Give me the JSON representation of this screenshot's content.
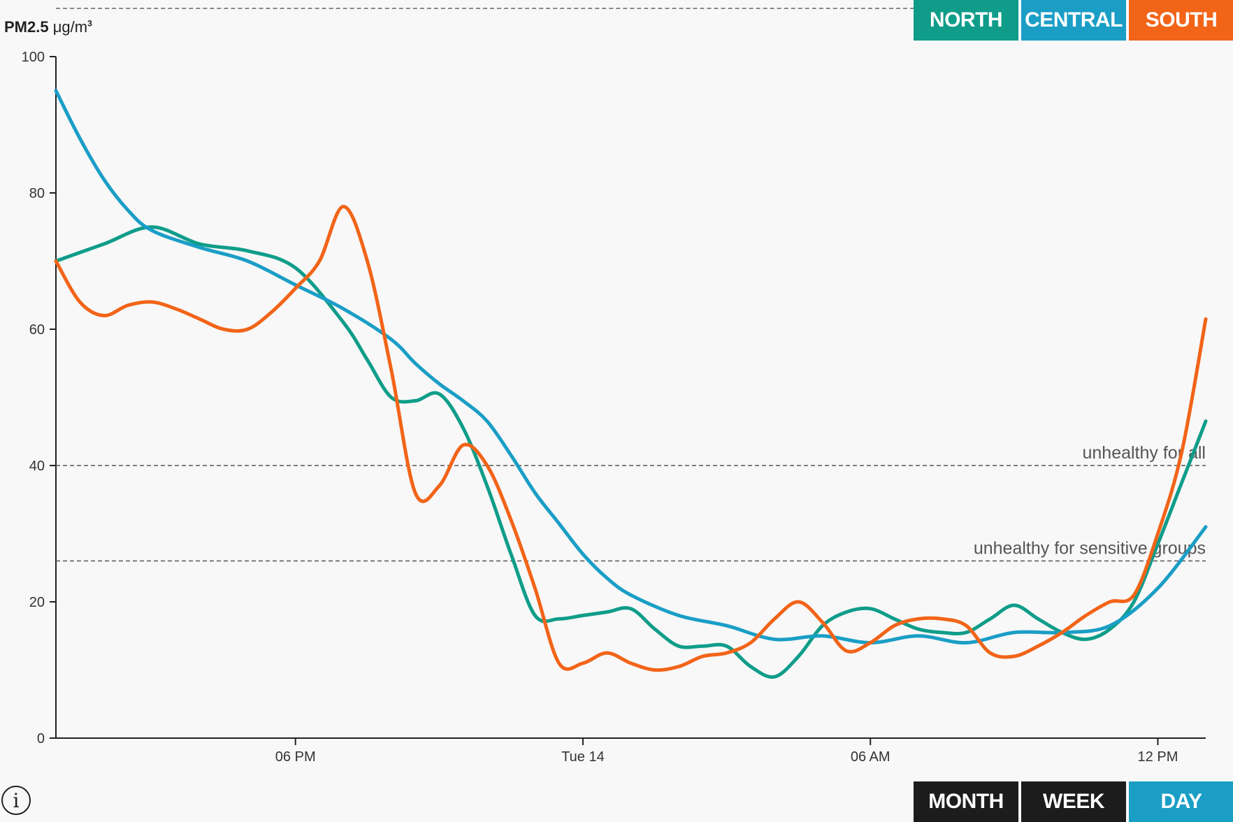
{
  "header": {
    "pollutant": "PM2.5",
    "unit": "μg/m",
    "unit_exp": "3"
  },
  "region_buttons": [
    {
      "label": "NORTH",
      "color": "#0f9d8a"
    },
    {
      "label": "CENTRAL",
      "color": "#1a9ec6"
    },
    {
      "label": "SOUTH",
      "color": "#f26418"
    }
  ],
  "range_buttons": [
    {
      "label": "MONTH",
      "color": "#1c1c1c",
      "selected": false
    },
    {
      "label": "WEEK",
      "color": "#1c1c1c",
      "selected": false
    },
    {
      "label": "DAY",
      "color": "#1a9ec6",
      "selected": true
    }
  ],
  "info_glyph": "i",
  "chart_data": {
    "type": "line",
    "x_unit": "hours",
    "xlim": [
      0,
      24
    ],
    "ylim": [
      0,
      100
    ],
    "yticks": [
      0,
      20,
      40,
      60,
      80,
      100
    ],
    "xticks": [
      {
        "x": 5,
        "label": "06 PM"
      },
      {
        "x": 11,
        "label": "Tue 14"
      },
      {
        "x": 17,
        "label": "06 AM"
      },
      {
        "x": 23,
        "label": "12 PM"
      }
    ],
    "thresholds": [
      {
        "value": 40,
        "label": "unhealthy for all"
      },
      {
        "value": 26,
        "label": "unhealthy for sensitive groups"
      }
    ],
    "grid": false,
    "series": [
      {
        "name": "NORTH",
        "color": "#0f9d8a",
        "x": [
          0,
          1,
          2,
          3,
          4,
          5,
          6,
          6.5,
          7,
          7.5,
          8,
          8.5,
          9,
          9.5,
          10,
          10.5,
          11,
          11.5,
          12,
          12.5,
          13,
          13.5,
          14,
          14.5,
          15,
          15.5,
          16,
          16.5,
          17,
          17.5,
          18,
          18.5,
          19,
          19.5,
          20,
          20.5,
          21,
          21.5,
          22,
          22.5,
          23,
          23.5,
          24
        ],
        "y": [
          70,
          72.5,
          75,
          72.5,
          71.5,
          69,
          61,
          55.5,
          50,
          49.5,
          50.5,
          45.5,
          37,
          27,
          18,
          17.5,
          18,
          18.5,
          19,
          16,
          13.5,
          13.5,
          13.5,
          10.5,
          9,
          12,
          16.5,
          18.5,
          19,
          17.5,
          16,
          15.5,
          15.5,
          17.5,
          19.5,
          17.5,
          15.5,
          14.5,
          16,
          20,
          28.5,
          37.5,
          46.5
        ]
      },
      {
        "name": "CENTRAL",
        "color": "#1a9ec6",
        "x": [
          0,
          0.5,
          1,
          1.5,
          2,
          3,
          4,
          5,
          6,
          7,
          7.5,
          8,
          8.5,
          9,
          9.5,
          10,
          10.5,
          11,
          11.5,
          12,
          13,
          14,
          15,
          16,
          17,
          18,
          19,
          20,
          21,
          22,
          23,
          24
        ],
        "y": [
          95,
          88,
          82,
          77.5,
          74.5,
          72,
          70,
          66.5,
          63,
          58.5,
          55,
          52,
          49.5,
          46.5,
          41.5,
          36,
          31.5,
          27,
          23.5,
          21,
          18,
          16.5,
          14.5,
          15,
          14,
          15,
          14,
          15.5,
          15.5,
          16.5,
          22,
          31
        ]
      },
      {
        "name": "SOUTH",
        "color": "#f26418",
        "x": [
          0,
          0.5,
          1,
          1.5,
          2,
          2.5,
          3,
          3.5,
          4,
          4.5,
          5,
          5.5,
          6,
          6.5,
          7,
          7.5,
          8,
          8.5,
          9,
          9.5,
          10,
          10.5,
          11,
          11.5,
          12,
          12.5,
          13,
          13.5,
          14,
          14.5,
          15,
          15.5,
          16,
          16.5,
          17,
          17.5,
          18,
          18.5,
          19,
          19.5,
          20,
          20.5,
          21,
          21.5,
          22,
          22.5,
          23,
          23.5,
          24
        ],
        "y": [
          70,
          64,
          62,
          63.5,
          64,
          63,
          61.5,
          60,
          60,
          62.5,
          66,
          70,
          78,
          70,
          54,
          36,
          37,
          43,
          40,
          32,
          22,
          11,
          11,
          12.5,
          11,
          10,
          10.5,
          12,
          12.5,
          14,
          17.5,
          20,
          17,
          12.8,
          14,
          16.5,
          17.5,
          17.5,
          16.5,
          12.5,
          12,
          13.5,
          15.5,
          18,
          20,
          21,
          30,
          42,
          61.5
        ]
      }
    ]
  }
}
